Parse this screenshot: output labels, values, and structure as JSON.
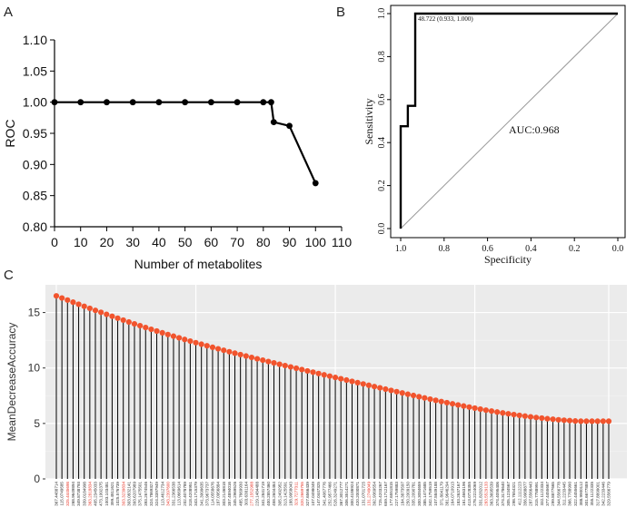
{
  "panels": {
    "a": "A",
    "b": "B",
    "c": "C"
  },
  "chart_data": [
    {
      "type": "line",
      "panel": "A",
      "xlabel": "Number of metabolites",
      "ylabel": "ROC",
      "xlim": [
        0,
        110
      ],
      "ylim": [
        0.8,
        1.1
      ],
      "xticks": [
        "0",
        "10",
        "20",
        "30",
        "40",
        "50",
        "60",
        "70",
        "80",
        "90",
        "100",
        "110"
      ],
      "yticks": [
        "0.80",
        "0.85",
        "0.90",
        "0.95",
        "1.00",
        "1.05",
        "1.10"
      ],
      "x": [
        0,
        10,
        20,
        30,
        40,
        50,
        60,
        70,
        80,
        83,
        84,
        90,
        100
      ],
      "y": [
        1.0,
        1.0,
        1.0,
        1.0,
        1.0,
        1.0,
        1.0,
        1.0,
        1.0,
        1.0,
        0.968,
        0.962,
        0.87
      ]
    },
    {
      "type": "line",
      "panel": "B",
      "xlabel": "Specificity",
      "ylabel": "Sensitivity",
      "xlim": [
        1.0,
        0.0
      ],
      "ylim": [
        0.0,
        1.0
      ],
      "xticks": [
        "1.0",
        "0.8",
        "0.6",
        "0.4",
        "0.2",
        "0.0"
      ],
      "yticks": [
        "0.0",
        "0.2",
        "0.4",
        "0.6",
        "0.8",
        "1.0"
      ],
      "specificity": [
        1.0,
        1.0,
        0.967,
        0.967,
        0.933,
        0.933,
        0.0
      ],
      "sensitivity": [
        0.0,
        0.476,
        0.476,
        0.571,
        0.571,
        1.0,
        1.0
      ],
      "threshold_label": "48.722 (0.933, 1.000)",
      "auc_label": "AUC:0.968"
    },
    {
      "type": "lollipop",
      "panel": "C",
      "ylabel": "MeanDecreaseAccuracy",
      "ylim": [
        0,
        17.5
      ],
      "yticks": [
        "0",
        "5",
        "10",
        "15"
      ],
      "grid": true,
      "start_value": 16.5,
      "end_value": 5.2,
      "count": 100,
      "labels": [
        "367.4488714",
        "115.0749585",
        "325.4445698",
        "268.9649894",
        "349.8738793",
        "339.0184998",
        "363.2818834",
        "405.2345033",
        "473.1992375",
        "1003.103481",
        "399.4811621",
        "1025.576739",
        "303.3239834",
        "303.0832141",
        "393.6207989",
        "375.1475501",
        "393.2674546",
        "324.7869327",
        "324.3397949",
        "113.4612734",
        "343.2397600",
        "331.2366538",
        "113.0669614",
        "202.4078789",
        "318.4208951",
        "343.1715379",
        "341.3999635",
        "373.9673737",
        "114.0558676",
        "187.0956884",
        "303.2146818",
        "357.4894016",
        "345.2969526",
        "485.7669930",
        "303.6381164",
        "277.1552988",
        "229.1484488",
        "341.2841719",
        "400.2857460",
        "458.2604484",
        "305.2492952",
        "313.1425591",
        "188.9958043",
        "329.7277311",
        "320.2669755",
        "327.6566439",
        "107.0498049",
        "147.0447325",
        "341.4067776",
        "252.9577466",
        "526.3249271",
        "367.3012777",
        "306.3514271",
        "300.4186924",
        "420.2000871",
        "131.0701725",
        "131.2749049",
        "392.9369554",
        "725.4203267",
        "659.1712167",
        "177.6551815",
        "227.1759883",
        "184.3873597",
        "250.2009150",
        "335.2090781",
        "300.3084659",
        "385.1471685",
        "342.1759519",
        "107.5849188",
        "371.8041179",
        "381.9646294",
        "164.0710913",
        "183.2637167",
        "161.4663196",
        "413.0728355",
        "278.2224069",
        "331.8282012",
        "283.5529133",
        "363.3695539",
        "374.4095406",
        "374.3178640",
        "305.1234567",
        "298.7654321",
        "412.1112223",
        "356.9988877",
        "287.5566443",
        "315.7788991",
        "332.1122334",
        "377.4455667",
        "299.8877665",
        "344.5566778",
        "311.2233445",
        "366.7788990",
        "322.4455661",
        "388.9900112",
        "301.6677889",
        "355.1122335",
        "317.8899001",
        "342.2233446",
        "329.5566779"
      ],
      "highlighted_label_indices": [
        2,
        6,
        12,
        20,
        35,
        43,
        44,
        56,
        77
      ]
    }
  ]
}
